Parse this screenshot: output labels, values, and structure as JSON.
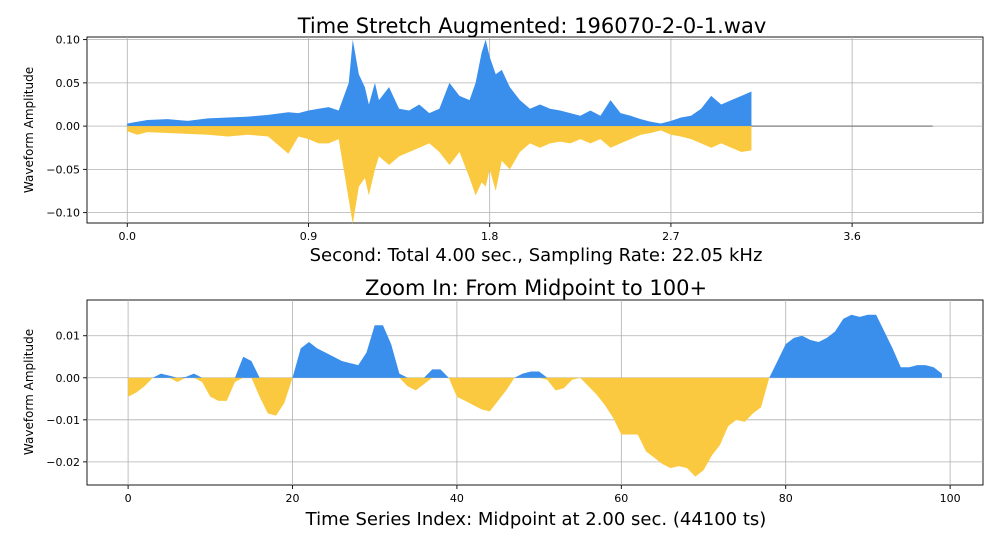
{
  "chart_data": [
    {
      "type": "area",
      "title": "Time Stretch Augmented: 196070-2-0-1.wav",
      "xlabel": "Second: Total 4.00 sec., Sampling Rate: 22.05 kHz",
      "ylabel": "Waveform Amplitude",
      "xlim": [
        -0.2,
        4.25
      ],
      "ylim": [
        -0.112,
        0.103
      ],
      "xticks": [
        0.0,
        0.9,
        1.8,
        2.7,
        3.6
      ],
      "xtick_labels": [
        "0.0",
        "0.9",
        "1.8",
        "2.7",
        "3.6"
      ],
      "yticks": [
        0.1,
        0.05,
        0.0,
        -0.05,
        -0.1
      ],
      "ytick_labels": [
        "0.10",
        "0.05",
        "0.00",
        "−0.05",
        "−0.10"
      ],
      "grid": true,
      "colors": {
        "positive": "#3a8fed",
        "negative": "#fac93f",
        "silence": "#7f7f7f"
      },
      "signal_end_sec": 3.1,
      "total_sec": 4.0,
      "series": [
        {
          "values_positive": {
            "x": [
              0.0,
              0.05,
              0.1,
              0.2,
              0.3,
              0.4,
              0.5,
              0.6,
              0.7,
              0.8,
              0.85,
              0.9,
              0.95,
              1.0,
              1.05,
              1.1,
              1.12,
              1.15,
              1.18,
              1.2,
              1.23,
              1.25,
              1.3,
              1.35,
              1.4,
              1.45,
              1.5,
              1.55,
              1.6,
              1.65,
              1.7,
              1.73,
              1.76,
              1.78,
              1.8,
              1.83,
              1.86,
              1.9,
              1.95,
              2.0,
              2.05,
              2.1,
              2.15,
              2.2,
              2.25,
              2.3,
              2.35,
              2.4,
              2.45,
              2.5,
              2.55,
              2.6,
              2.65,
              2.7,
              2.75,
              2.8,
              2.85,
              2.9,
              2.95,
              3.0,
              3.05,
              3.1
            ],
            "y": [
              0.003,
              0.005,
              0.007,
              0.008,
              0.006,
              0.009,
              0.01,
              0.011,
              0.013,
              0.016,
              0.015,
              0.018,
              0.02,
              0.022,
              0.018,
              0.05,
              0.1,
              0.06,
              0.045,
              0.025,
              0.05,
              0.03,
              0.045,
              0.02,
              0.018,
              0.025,
              0.015,
              0.02,
              0.05,
              0.035,
              0.03,
              0.05,
              0.085,
              0.1,
              0.08,
              0.06,
              0.065,
              0.045,
              0.03,
              0.02,
              0.025,
              0.02,
              0.018,
              0.015,
              0.012,
              0.018,
              0.012,
              0.03,
              0.015,
              0.012,
              0.008,
              0.005,
              0.003,
              0.006,
              0.01,
              0.012,
              0.02,
              0.035,
              0.025,
              0.03,
              0.035,
              0.04
            ]
          },
          "values_negative": {
            "x": [
              0.0,
              0.05,
              0.1,
              0.2,
              0.3,
              0.4,
              0.5,
              0.6,
              0.7,
              0.8,
              0.85,
              0.9,
              0.95,
              1.0,
              1.05,
              1.1,
              1.12,
              1.15,
              1.18,
              1.2,
              1.23,
              1.25,
              1.3,
              1.35,
              1.4,
              1.45,
              1.5,
              1.55,
              1.6,
              1.65,
              1.7,
              1.73,
              1.76,
              1.78,
              1.8,
              1.83,
              1.86,
              1.9,
              1.95,
              2.0,
              2.05,
              2.1,
              2.15,
              2.2,
              2.25,
              2.3,
              2.35,
              2.4,
              2.45,
              2.5,
              2.55,
              2.6,
              2.65,
              2.7,
              2.75,
              2.8,
              2.85,
              2.9,
              2.95,
              3.0,
              3.05,
              3.1
            ],
            "y": [
              -0.006,
              -0.01,
              -0.007,
              -0.008,
              -0.009,
              -0.01,
              -0.012,
              -0.01,
              -0.012,
              -0.032,
              -0.012,
              -0.015,
              -0.02,
              -0.02,
              -0.015,
              -0.085,
              -0.113,
              -0.07,
              -0.06,
              -0.08,
              -0.05,
              -0.035,
              -0.045,
              -0.035,
              -0.03,
              -0.025,
              -0.02,
              -0.03,
              -0.045,
              -0.03,
              -0.06,
              -0.08,
              -0.065,
              -0.07,
              -0.05,
              -0.075,
              -0.04,
              -0.05,
              -0.03,
              -0.02,
              -0.025,
              -0.02,
              -0.018,
              -0.02,
              -0.015,
              -0.02,
              -0.015,
              -0.025,
              -0.02,
              -0.015,
              -0.01,
              -0.008,
              -0.005,
              -0.01,
              -0.012,
              -0.015,
              -0.02,
              -0.025,
              -0.02,
              -0.025,
              -0.03,
              -0.028
            ]
          }
        }
      ]
    },
    {
      "type": "area",
      "title": "Zoom In: From Midpoint to 100+",
      "xlabel": "Time Series Index: Midpoint at 2.00 sec. (44100 ts)",
      "ylabel": "Waveform Amplitude",
      "xlim": [
        -5,
        104
      ],
      "ylim": [
        -0.0255,
        0.0185
      ],
      "xticks": [
        0,
        20,
        40,
        60,
        80,
        100
      ],
      "xtick_labels": [
        "0",
        "20",
        "40",
        "60",
        "80",
        "100"
      ],
      "yticks": [
        0.01,
        0.0,
        -0.01,
        -0.02
      ],
      "ytick_labels": [
        "0.01",
        "0.00",
        "−0.01",
        "−0.02"
      ],
      "grid": true,
      "colors": {
        "positive": "#3a8fed",
        "negative": "#fac93f"
      },
      "series": [
        {
          "x": [
            0,
            1,
            2,
            3,
            4,
            5,
            6,
            7,
            8,
            9,
            10,
            11,
            12,
            13,
            14,
            15,
            16,
            17,
            18,
            19,
            20,
            21,
            22,
            23,
            24,
            25,
            26,
            27,
            28,
            29,
            30,
            31,
            32,
            33,
            34,
            35,
            36,
            37,
            38,
            39,
            40,
            41,
            42,
            43,
            44,
            45,
            46,
            47,
            48,
            49,
            50,
            51,
            52,
            53,
            54,
            55,
            56,
            57,
            58,
            59,
            60,
            61,
            62,
            63,
            64,
            65,
            66,
            67,
            68,
            69,
            70,
            71,
            72,
            73,
            74,
            75,
            76,
            77,
            78,
            79,
            80,
            81,
            82,
            83,
            84,
            85,
            86,
            87,
            88,
            89,
            90,
            91,
            92,
            93,
            94,
            95,
            96,
            97,
            98,
            99
          ],
          "y": [
            -0.0045,
            -0.0035,
            -0.002,
            0.0,
            0.001,
            0.0005,
            -0.001,
            0.0002,
            0.001,
            -0.001,
            -0.0045,
            -0.0055,
            -0.0055,
            -0.001,
            0.005,
            0.004,
            -0.0045,
            -0.0085,
            -0.009,
            -0.006,
            0.0,
            0.007,
            0.0085,
            0.007,
            0.006,
            0.005,
            0.004,
            0.0035,
            0.003,
            0.006,
            0.0125,
            0.0125,
            0.008,
            0.001,
            -0.002,
            -0.003,
            -0.0015,
            0.002,
            0.002,
            0.0,
            -0.0045,
            -0.0055,
            -0.0065,
            -0.0075,
            -0.008,
            -0.0055,
            -0.003,
            0.0,
            0.001,
            0.0015,
            0.0015,
            -0.0005,
            -0.003,
            -0.0025,
            -0.0005,
            0.0,
            -0.002,
            -0.004,
            -0.0065,
            -0.0095,
            -0.0135,
            -0.0135,
            -0.0135,
            -0.0175,
            -0.019,
            -0.0205,
            -0.0215,
            -0.021,
            -0.0215,
            -0.0235,
            -0.022,
            -0.0185,
            -0.016,
            -0.0115,
            -0.01,
            -0.0105,
            -0.0085,
            -0.007,
            0.0,
            0.004,
            0.008,
            0.0095,
            0.01,
            0.009,
            0.0085,
            0.0095,
            0.011,
            0.014,
            0.015,
            0.0145,
            0.015,
            0.015,
            0.011,
            0.007,
            0.0025,
            0.0025,
            0.003,
            0.003,
            0.0025,
            0.001
          ]
        }
      ]
    }
  ]
}
